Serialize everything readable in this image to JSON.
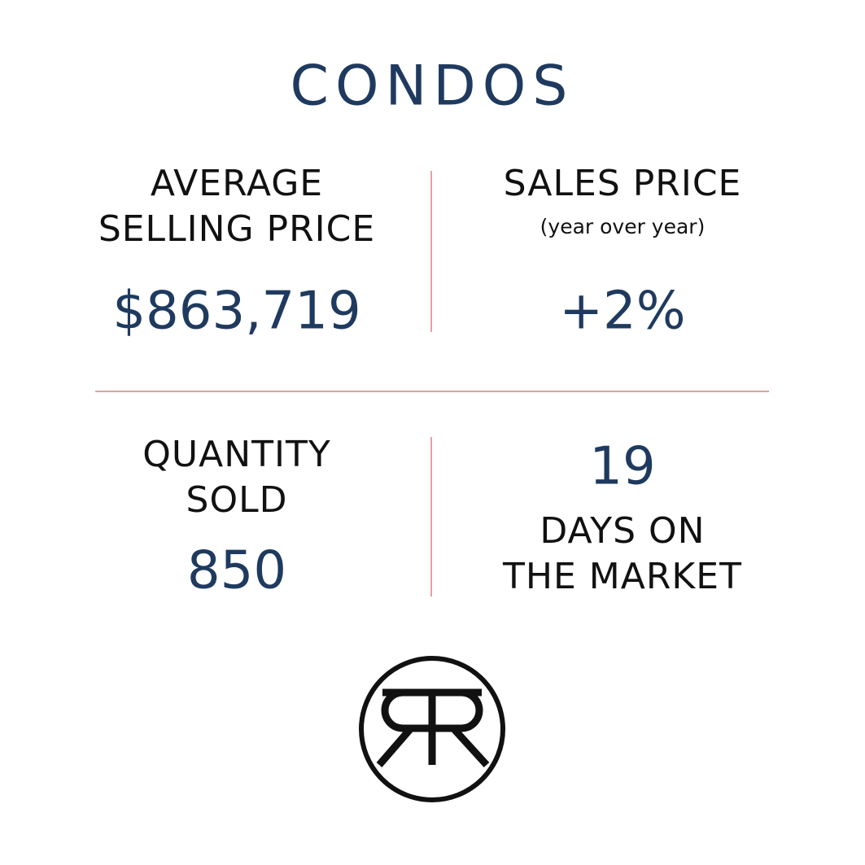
{
  "title": "CONDOS",
  "stats": [
    {
      "label": [
        "AVERAGE",
        "SELLING PRICE"
      ],
      "value": "$863,719"
    },
    {
      "label": [
        "SALES PRICE"
      ],
      "note": "(year over year)",
      "value": "+2%"
    },
    {
      "label": [
        "QUANTITY",
        "SOLD"
      ],
      "value": "850"
    },
    {
      "value": "19",
      "label": [
        "DAYS ON",
        "THE MARKET"
      ]
    }
  ]
}
